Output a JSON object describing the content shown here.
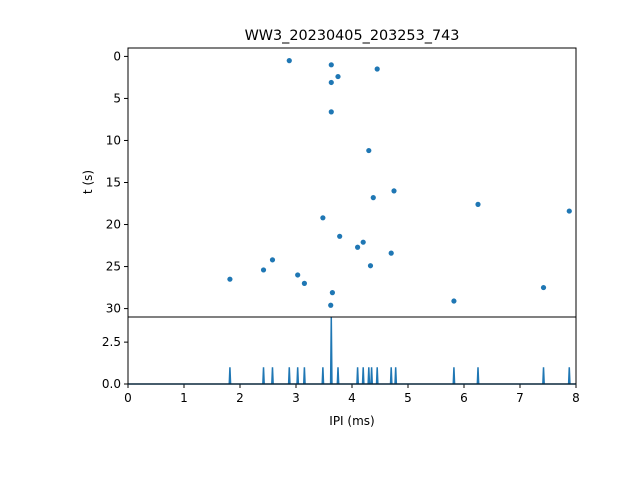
{
  "chart_data": [
    {
      "type": "scatter",
      "title": "WW3_20230405_203253_743",
      "xlabel": "",
      "ylabel": "t (s)",
      "xlim": [
        0,
        8
      ],
      "ylim": [
        31,
        -1
      ],
      "y_inverted": true,
      "y_ticks": [
        "0",
        "5",
        "10",
        "15",
        "20",
        "25",
        "30"
      ],
      "y_tick_values": [
        0,
        5,
        10,
        15,
        20,
        25,
        30
      ],
      "color": "#1f77b4",
      "points": [
        {
          "x": 2.88,
          "y": 0.5
        },
        {
          "x": 3.63,
          "y": 1.0
        },
        {
          "x": 3.75,
          "y": 2.4
        },
        {
          "x": 4.45,
          "y": 1.5
        },
        {
          "x": 3.63,
          "y": 3.1
        },
        {
          "x": 3.63,
          "y": 6.6
        },
        {
          "x": 4.3,
          "y": 11.2
        },
        {
          "x": 4.75,
          "y": 16.0
        },
        {
          "x": 4.38,
          "y": 16.8
        },
        {
          "x": 6.25,
          "y": 17.6
        },
        {
          "x": 7.88,
          "y": 18.4
        },
        {
          "x": 3.48,
          "y": 19.2
        },
        {
          "x": 3.78,
          "y": 21.4
        },
        {
          "x": 4.2,
          "y": 22.1
        },
        {
          "x": 4.1,
          "y": 22.7
        },
        {
          "x": 4.7,
          "y": 23.4
        },
        {
          "x": 2.58,
          "y": 24.2
        },
        {
          "x": 4.33,
          "y": 24.9
        },
        {
          "x": 2.42,
          "y": 25.4
        },
        {
          "x": 3.03,
          "y": 26.0
        },
        {
          "x": 1.82,
          "y": 26.5
        },
        {
          "x": 3.15,
          "y": 27.0
        },
        {
          "x": 7.42,
          "y": 27.5
        },
        {
          "x": 3.65,
          "y": 28.1
        },
        {
          "x": 5.82,
          "y": 29.1
        },
        {
          "x": 3.62,
          "y": 29.6
        }
      ]
    },
    {
      "type": "line",
      "title": "",
      "xlabel": "IPI (ms)",
      "ylabel": "",
      "xlim": [
        0,
        8
      ],
      "ylim": [
        0,
        4.0
      ],
      "x_ticks": [
        "0",
        "1",
        "2",
        "3",
        "4",
        "5",
        "6",
        "7",
        "8"
      ],
      "x_tick_values": [
        0,
        1,
        2,
        3,
        4,
        5,
        6,
        7,
        8
      ],
      "y_ticks": [
        "0.0",
        "2.5"
      ],
      "y_tick_values": [
        0,
        2.5
      ],
      "color": "#1f77b4",
      "spikes": [
        {
          "x": 1.82,
          "y": 1.0
        },
        {
          "x": 2.42,
          "y": 1.0
        },
        {
          "x": 2.58,
          "y": 1.0
        },
        {
          "x": 2.88,
          "y": 1.0
        },
        {
          "x": 3.03,
          "y": 1.0
        },
        {
          "x": 3.15,
          "y": 1.0
        },
        {
          "x": 3.48,
          "y": 1.0
        },
        {
          "x": 3.63,
          "y": 4.0
        },
        {
          "x": 3.75,
          "y": 1.0
        },
        {
          "x": 4.1,
          "y": 1.0
        },
        {
          "x": 4.2,
          "y": 1.0
        },
        {
          "x": 4.3,
          "y": 1.0
        },
        {
          "x": 4.35,
          "y": 1.0
        },
        {
          "x": 4.45,
          "y": 1.0
        },
        {
          "x": 4.7,
          "y": 1.0
        },
        {
          "x": 4.78,
          "y": 1.0
        },
        {
          "x": 5.82,
          "y": 1.0
        },
        {
          "x": 6.25,
          "y": 1.0
        },
        {
          "x": 7.42,
          "y": 1.0
        },
        {
          "x": 7.88,
          "y": 1.0
        }
      ]
    }
  ]
}
